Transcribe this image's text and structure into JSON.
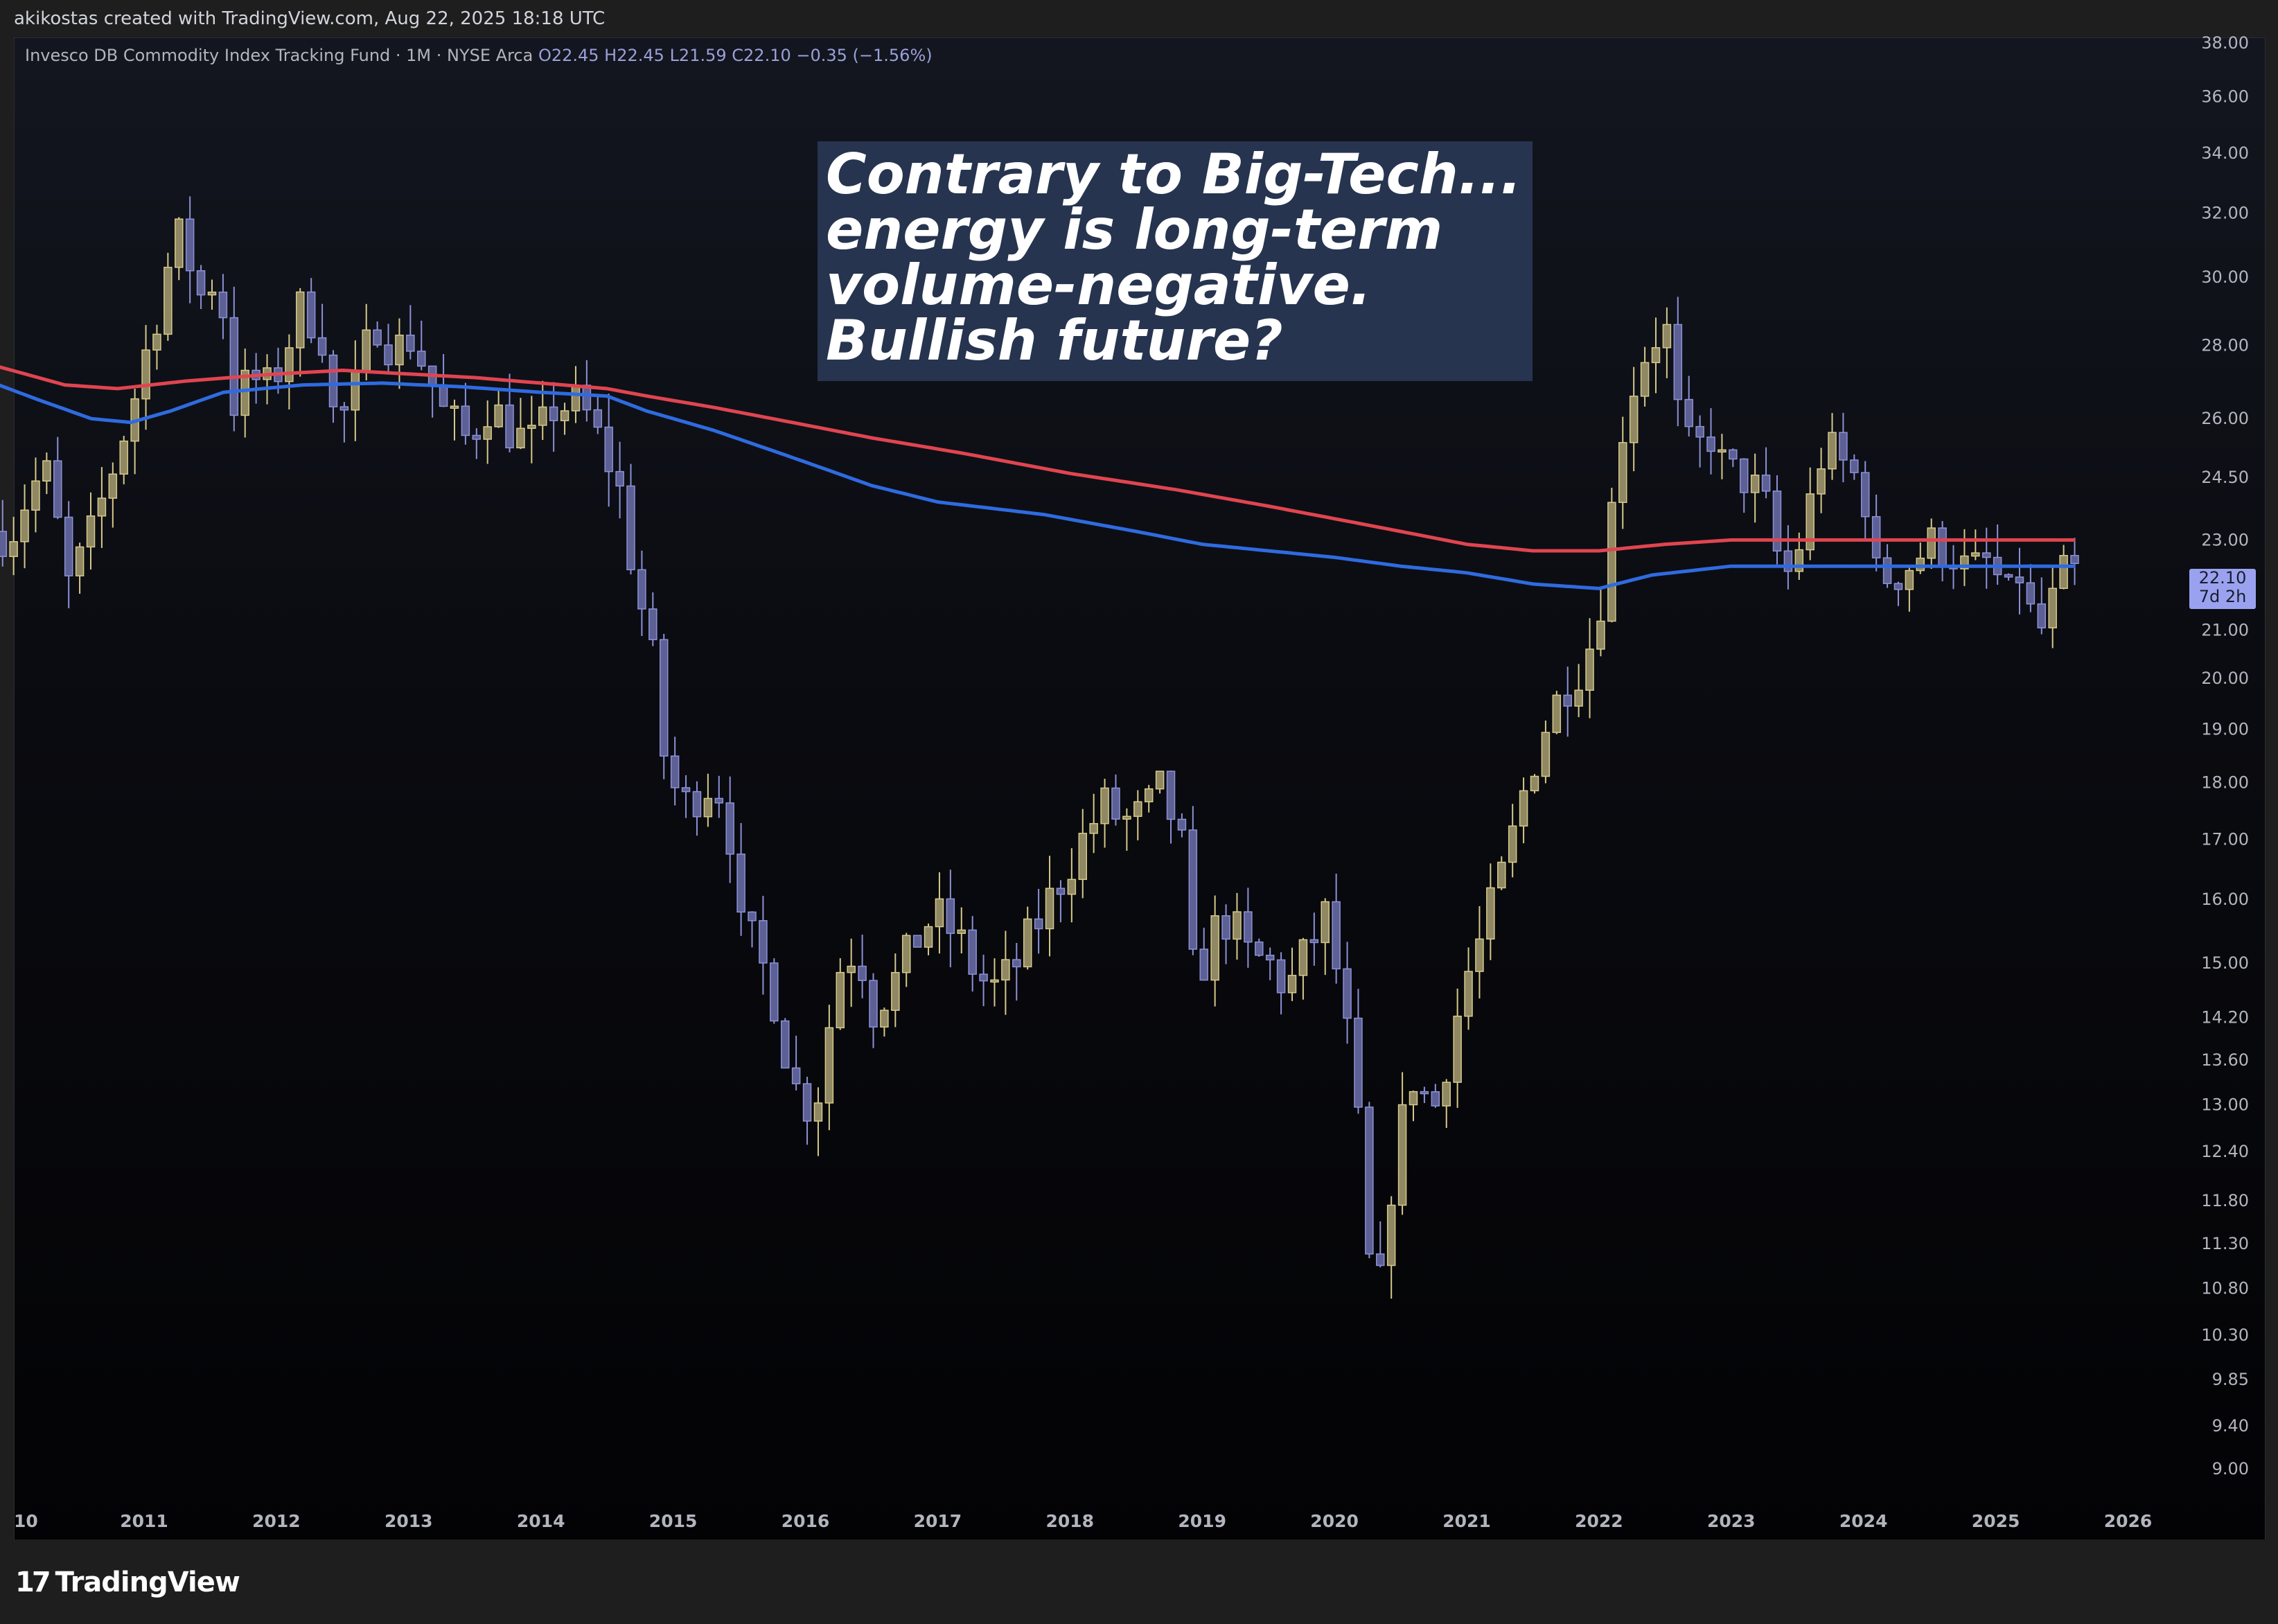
{
  "caption": "akikostas created with TradingView.com, Aug 22, 2025 18:18 UTC",
  "legend": {
    "symbol": "Invesco DB Commodity Index Tracking Fund · 1M · NYSE Arca",
    "ohlc": "O22.45  H22.45  L21.59  C22.10  −0.35 (−1.56%)"
  },
  "headline": {
    "lines": [
      "Contrary to Big-Tech...",
      "energy is long-term",
      "volume-negative.",
      "Bullish future?"
    ]
  },
  "price_tag": {
    "price": "22.10",
    "countdown": "7d 2h"
  },
  "brand": {
    "name": "TradingView"
  },
  "colors": {
    "up_candle": "#d6c98a",
    "down_candle": "#8c91d6",
    "ma_red": "#e04550",
    "ma_blue": "#2f6be0",
    "axis_text": "#b2b5be"
  },
  "chart_data": {
    "type": "candlestick",
    "log_scale": true,
    "y_ticks": [
      "38.00",
      "36.00",
      "34.00",
      "32.00",
      "30.00",
      "28.00",
      "26.00",
      "24.50",
      "23.00",
      "21.00",
      "20.00",
      "19.00",
      "18.00",
      "17.00",
      "16.00",
      "15.00",
      "14.20",
      "13.60",
      "13.00",
      "12.40",
      "11.80",
      "11.30",
      "10.80",
      "10.30",
      "9.85",
      "9.40",
      "9.00"
    ],
    "x_ticks": [
      "10",
      "2011",
      "2012",
      "2013",
      "2014",
      "2015",
      "2016",
      "2017",
      "2018",
      "2019",
      "2020",
      "2021",
      "2022",
      "2023",
      "2024",
      "2025",
      "2026"
    ],
    "years": [
      2011,
      2012,
      2013,
      2014,
      2015,
      2016,
      2017,
      2018,
      2019,
      2020,
      2021,
      2022,
      2023,
      2024,
      2025,
      2026
    ],
    "x_range": [
      2009.9,
      2026.3
    ],
    "close_anchors": [
      [
        2010.0,
        23.2
      ],
      [
        2010.15,
        24.3
      ],
      [
        2010.3,
        24.6
      ],
      [
        2010.4,
        21.8
      ],
      [
        2010.5,
        22.4
      ],
      [
        2010.6,
        23.1
      ],
      [
        2010.75,
        24.6
      ],
      [
        2010.9,
        26.2
      ],
      [
        2011.0,
        27.6
      ],
      [
        2011.1,
        29.0
      ],
      [
        2011.2,
        30.6
      ],
      [
        2011.3,
        31.5
      ],
      [
        2011.4,
        29.2
      ],
      [
        2011.5,
        30.0
      ],
      [
        2011.6,
        29.0
      ],
      [
        2011.7,
        25.8
      ],
      [
        2011.8,
        27.4
      ],
      [
        2011.9,
        26.6
      ],
      [
        2012.0,
        27.2
      ],
      [
        2012.2,
        29.2
      ],
      [
        2012.35,
        28.3
      ],
      [
        2012.45,
        25.6
      ],
      [
        2012.6,
        26.8
      ],
      [
        2012.75,
        28.8
      ],
      [
        2012.9,
        27.8
      ],
      [
        2013.0,
        28.3
      ],
      [
        2013.15,
        27.2
      ],
      [
        2013.25,
        26.2
      ],
      [
        2013.45,
        25.4
      ],
      [
        2013.6,
        26.4
      ],
      [
        2013.8,
        25.6
      ],
      [
        2013.95,
        25.3
      ],
      [
        2014.1,
        26.3
      ],
      [
        2014.3,
        26.4
      ],
      [
        2014.5,
        25.0
      ],
      [
        2014.6,
        24.1
      ],
      [
        2014.7,
        22.3
      ],
      [
        2014.85,
        20.3
      ],
      [
        2014.95,
        18.1
      ],
      [
        2015.1,
        17.6
      ],
      [
        2015.25,
        18.0
      ],
      [
        2015.4,
        17.8
      ],
      [
        2015.5,
        15.5
      ],
      [
        2015.6,
        15.3
      ],
      [
        2015.75,
        14.6
      ],
      [
        2015.9,
        13.3
      ],
      [
        2016.0,
        13.0
      ],
      [
        2016.1,
        13.2
      ],
      [
        2016.25,
        14.9
      ],
      [
        2016.4,
        15.3
      ],
      [
        2016.5,
        14.3
      ],
      [
        2016.7,
        14.8
      ],
      [
        2016.9,
        15.6
      ],
      [
        2017.0,
        15.7
      ],
      [
        2017.15,
        15.4
      ],
      [
        2017.3,
        14.8
      ],
      [
        2017.45,
        14.6
      ],
      [
        2017.6,
        15.0
      ],
      [
        2017.75,
        15.6
      ],
      [
        2017.9,
        16.2
      ],
      [
        2018.0,
        16.6
      ],
      [
        2018.1,
        17.0
      ],
      [
        2018.25,
        17.6
      ],
      [
        2018.4,
        17.3
      ],
      [
        2018.55,
        17.4
      ],
      [
        2018.7,
        17.9
      ],
      [
        2018.85,
        16.8
      ],
      [
        2018.95,
        14.4
      ],
      [
        2019.05,
        15.4
      ],
      [
        2019.2,
        15.7
      ],
      [
        2019.35,
        15.1
      ],
      [
        2019.5,
        15.0
      ],
      [
        2019.65,
        14.6
      ],
      [
        2019.8,
        15.2
      ],
      [
        2019.95,
        15.8
      ],
      [
        2020.05,
        14.4
      ],
      [
        2020.15,
        13.4
      ],
      [
        2020.25,
        11.1
      ],
      [
        2020.35,
        10.8
      ],
      [
        2020.45,
        12.3
      ],
      [
        2020.6,
        13.4
      ],
      [
        2020.75,
        12.9
      ],
      [
        2020.9,
        14.0
      ],
      [
        2021.0,
        14.8
      ],
      [
        2021.1,
        15.3
      ],
      [
        2021.3,
        16.6
      ],
      [
        2021.45,
        18.0
      ],
      [
        2021.6,
        19.1
      ],
      [
        2021.75,
        19.9
      ],
      [
        2021.9,
        20.4
      ],
      [
        2022.0,
        21.4
      ],
      [
        2022.1,
        23.8
      ],
      [
        2022.2,
        26.3
      ],
      [
        2022.35,
        27.8
      ],
      [
        2022.5,
        28.7
      ],
      [
        2022.6,
        26.0
      ],
      [
        2022.7,
        25.0
      ],
      [
        2022.85,
        25.6
      ],
      [
        2022.95,
        24.6
      ],
      [
        2023.1,
        24.5
      ],
      [
        2023.25,
        23.9
      ],
      [
        2023.4,
        22.0
      ],
      [
        2023.55,
        23.2
      ],
      [
        2023.7,
        25.3
      ],
      [
        2023.85,
        24.8
      ],
      [
        2024.0,
        24.3
      ],
      [
        2024.1,
        22.1
      ],
      [
        2024.3,
        22.3
      ],
      [
        2024.5,
        22.9
      ],
      [
        2024.65,
        22.8
      ],
      [
        2024.8,
        22.2
      ],
      [
        2024.95,
        22.5
      ],
      [
        2025.1,
        21.6
      ],
      [
        2025.2,
        22.4
      ],
      [
        2025.3,
        20.7
      ],
      [
        2025.45,
        21.7
      ],
      [
        2025.55,
        22.4
      ],
      [
        2025.62,
        22.1
      ]
    ],
    "ma_red": [
      [
        2009.9,
        27.4
      ],
      [
        2010.4,
        26.9
      ],
      [
        2010.8,
        26.8
      ],
      [
        2011.3,
        27.0
      ],
      [
        2012.0,
        27.2
      ],
      [
        2012.5,
        27.3
      ],
      [
        2013.0,
        27.2
      ],
      [
        2013.5,
        27.1
      ],
      [
        2014.0,
        26.95
      ],
      [
        2014.5,
        26.8
      ],
      [
        2014.8,
        26.6
      ],
      [
        2015.3,
        26.3
      ],
      [
        2015.9,
        25.9
      ],
      [
        2016.5,
        25.5
      ],
      [
        2017.2,
        25.1
      ],
      [
        2018.0,
        24.6
      ],
      [
        2018.8,
        24.2
      ],
      [
        2019.5,
        23.8
      ],
      [
        2020.0,
        23.5
      ],
      [
        2020.5,
        23.2
      ],
      [
        2021.0,
        22.9
      ],
      [
        2021.5,
        22.75
      ],
      [
        2022.0,
        22.75
      ],
      [
        2022.5,
        22.9
      ],
      [
        2023.0,
        23.0
      ],
      [
        2023.5,
        23.0
      ],
      [
        2024.0,
        23.0
      ],
      [
        2024.6,
        23.0
      ],
      [
        2025.0,
        23.0
      ],
      [
        2025.6,
        23.0
      ]
    ],
    "ma_blue": [
      [
        2009.9,
        26.9
      ],
      [
        2010.2,
        26.5
      ],
      [
        2010.6,
        26.0
      ],
      [
        2010.9,
        25.9
      ],
      [
        2011.2,
        26.2
      ],
      [
        2011.6,
        26.7
      ],
      [
        2012.2,
        26.9
      ],
      [
        2012.8,
        26.95
      ],
      [
        2013.4,
        26.85
      ],
      [
        2014.0,
        26.7
      ],
      [
        2014.5,
        26.6
      ],
      [
        2014.8,
        26.2
      ],
      [
        2015.3,
        25.7
      ],
      [
        2015.9,
        25.0
      ],
      [
        2016.5,
        24.3
      ],
      [
        2017.0,
        23.9
      ],
      [
        2017.8,
        23.6
      ],
      [
        2018.5,
        23.2
      ],
      [
        2019.0,
        22.9
      ],
      [
        2019.5,
        22.75
      ],
      [
        2020.0,
        22.6
      ],
      [
        2020.5,
        22.4
      ],
      [
        2021.0,
        22.25
      ],
      [
        2021.5,
        22.0
      ],
      [
        2022.0,
        21.9
      ],
      [
        2022.4,
        22.2
      ],
      [
        2023.0,
        22.4
      ],
      [
        2023.5,
        22.4
      ],
      [
        2024.0,
        22.4
      ],
      [
        2024.6,
        22.4
      ],
      [
        2025.0,
        22.4
      ],
      [
        2025.6,
        22.4
      ]
    ]
  }
}
